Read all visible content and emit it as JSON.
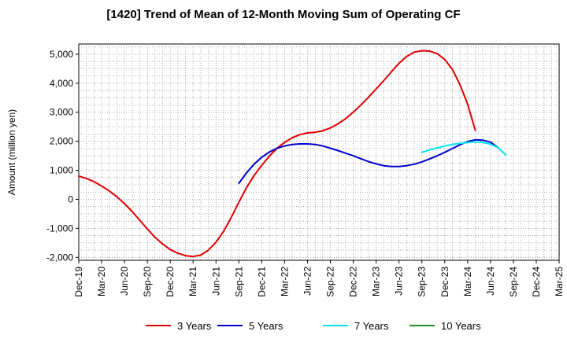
{
  "chart_data": {
    "type": "line",
    "title": "[1420]  Trend of Mean of 12-Month Moving Sum of Operating CF",
    "xlabel": "",
    "ylabel": "Amount (million yen)",
    "ylim": [
      -2100,
      5350
    ],
    "yticks": [
      5000,
      4000,
      3000,
      2000,
      1000,
      0,
      -1000,
      -2000
    ],
    "ytick_labels": [
      "5,000",
      "4,000",
      "3,000",
      "2,000",
      "1,000",
      "0",
      "-1,000",
      "-2,000"
    ],
    "xlim": [
      "2019-12",
      "2025-03"
    ],
    "xtick_labels": [
      "Dec-19",
      "Mar-20",
      "Jun-20",
      "Sep-20",
      "Dec-20",
      "Mar-21",
      "Jun-21",
      "Sep-21",
      "Dec-21",
      "Mar-22",
      "Jun-22",
      "Sep-22",
      "Dec-22",
      "Mar-23",
      "Jun-23",
      "Sep-23",
      "Dec-23",
      "Mar-24",
      "Jun-24",
      "Sep-24",
      "Dec-24",
      "Mar-25"
    ],
    "grid": true,
    "legend_position": "bottom",
    "series": [
      {
        "name": "3 Years",
        "color": "#e00000",
        "x_start": "2019-12",
        "values": [
          800,
          720,
          610,
          460,
          290,
          90,
          -150,
          -420,
          -720,
          -1020,
          -1310,
          -1540,
          -1730,
          -1860,
          -1940,
          -1970,
          -1920,
          -1750,
          -1480,
          -1100,
          -620,
          -100,
          400,
          820,
          1170,
          1490,
          1760,
          1960,
          2120,
          2230,
          2290,
          2310,
          2360,
          2460,
          2600,
          2780,
          3000,
          3250,
          3520,
          3800,
          4090,
          4390,
          4690,
          4920,
          5070,
          5120,
          5110,
          5020,
          4820,
          4480,
          3950,
          3280,
          2380
        ]
      },
      {
        "name": "5 Years",
        "color": "#0000cc",
        "x_start": "2021-09",
        "values": [
          550,
          910,
          1210,
          1450,
          1630,
          1760,
          1840,
          1890,
          1910,
          1910,
          1890,
          1840,
          1760,
          1680,
          1590,
          1500,
          1400,
          1300,
          1220,
          1160,
          1130,
          1130,
          1160,
          1210,
          1290,
          1390,
          1500,
          1620,
          1750,
          1880,
          1990,
          2050,
          2040,
          1970,
          1780
        ]
      },
      {
        "name": "7 Years",
        "color": "#00e5ee",
        "x_start": "2023-09",
        "values": [
          1620,
          1700,
          1770,
          1840,
          1890,
          1930,
          1960,
          1980,
          1960,
          1900,
          1780,
          1530
        ]
      },
      {
        "name": "10 Years",
        "color": "#228b22",
        "x_start": "2023-09",
        "values": []
      }
    ]
  }
}
